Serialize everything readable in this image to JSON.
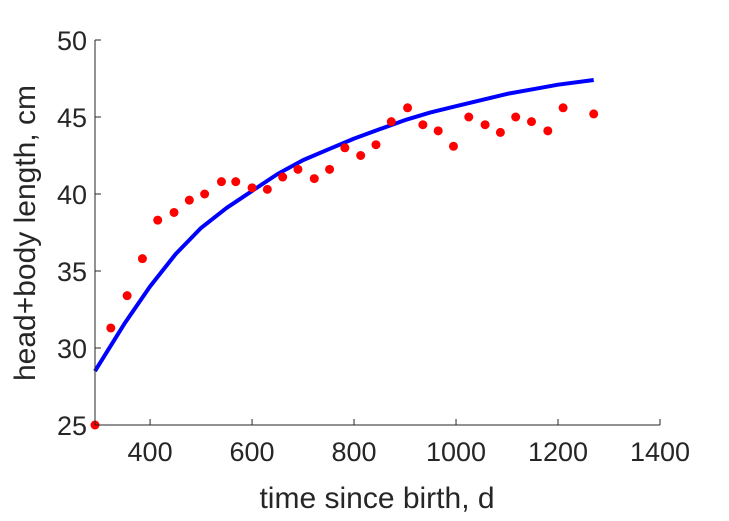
{
  "chart_data": {
    "type": "scatter",
    "xlabel": "time since birth, d",
    "ylabel": "head+body length, cm",
    "xlim": [
      292,
      1400
    ],
    "ylim": [
      25,
      50
    ],
    "xticks": [
      400,
      600,
      800,
      1000,
      1200,
      1400
    ],
    "yticks": [
      25,
      30,
      35,
      40,
      45,
      50
    ],
    "grid": false,
    "series": [
      {
        "type": "scatter",
        "color": "#ff0000",
        "points": [
          {
            "x": 292,
            "y": 25.0
          },
          {
            "x": 323,
            "y": 31.3
          },
          {
            "x": 355,
            "y": 33.4
          },
          {
            "x": 385,
            "y": 35.8
          },
          {
            "x": 415,
            "y": 38.3
          },
          {
            "x": 447,
            "y": 38.8
          },
          {
            "x": 477,
            "y": 39.6
          },
          {
            "x": 507,
            "y": 40.0
          },
          {
            "x": 540,
            "y": 40.8
          },
          {
            "x": 568,
            "y": 40.8
          },
          {
            "x": 600,
            "y": 40.4
          },
          {
            "x": 630,
            "y": 40.3
          },
          {
            "x": 660,
            "y": 41.1
          },
          {
            "x": 690,
            "y": 41.6
          },
          {
            "x": 722,
            "y": 41.0
          },
          {
            "x": 752,
            "y": 41.6
          },
          {
            "x": 782,
            "y": 43.0
          },
          {
            "x": 813,
            "y": 42.5
          },
          {
            "x": 843,
            "y": 43.2
          },
          {
            "x": 873,
            "y": 44.7
          },
          {
            "x": 905,
            "y": 45.6
          },
          {
            "x": 935,
            "y": 44.5
          },
          {
            "x": 965,
            "y": 44.1
          },
          {
            "x": 995,
            "y": 43.1
          },
          {
            "x": 1025,
            "y": 45.0
          },
          {
            "x": 1057,
            "y": 44.5
          },
          {
            "x": 1087,
            "y": 44.0
          },
          {
            "x": 1117,
            "y": 45.0
          },
          {
            "x": 1148,
            "y": 44.7
          },
          {
            "x": 1180,
            "y": 44.1
          },
          {
            "x": 1210,
            "y": 45.6
          },
          {
            "x": 1270,
            "y": 45.2
          }
        ]
      },
      {
        "type": "line",
        "color": "#0000ff",
        "points": [
          {
            "x": 292,
            "y": 28.5
          },
          {
            "x": 350,
            "y": 31.6
          },
          {
            "x": 400,
            "y": 34.0
          },
          {
            "x": 450,
            "y": 36.1
          },
          {
            "x": 500,
            "y": 37.8
          },
          {
            "x": 550,
            "y": 39.1
          },
          {
            "x": 600,
            "y": 40.2
          },
          {
            "x": 650,
            "y": 41.3
          },
          {
            "x": 700,
            "y": 42.2
          },
          {
            "x": 750,
            "y": 42.9
          },
          {
            "x": 800,
            "y": 43.6
          },
          {
            "x": 850,
            "y": 44.2
          },
          {
            "x": 900,
            "y": 44.8
          },
          {
            "x": 950,
            "y": 45.3
          },
          {
            "x": 1000,
            "y": 45.7
          },
          {
            "x": 1050,
            "y": 46.1
          },
          {
            "x": 1100,
            "y": 46.5
          },
          {
            "x": 1150,
            "y": 46.8
          },
          {
            "x": 1200,
            "y": 47.1
          },
          {
            "x": 1270,
            "y": 47.4
          }
        ]
      }
    ]
  }
}
